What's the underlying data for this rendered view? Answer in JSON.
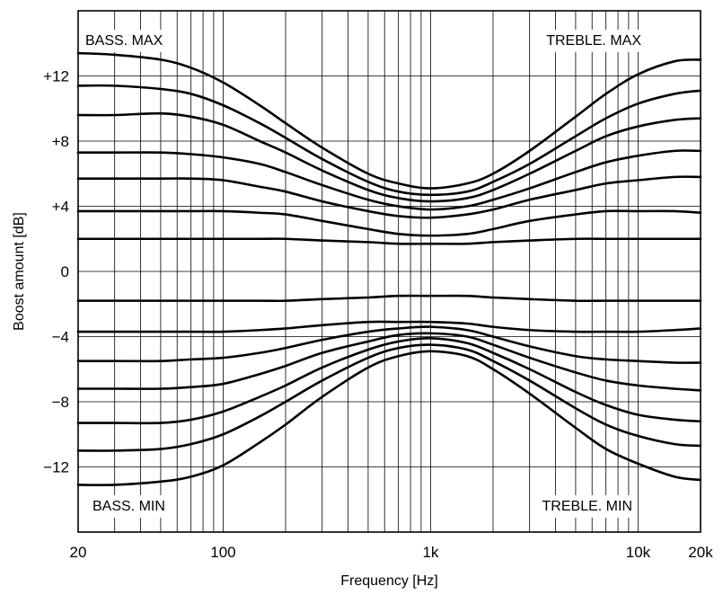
{
  "chart_data": {
    "type": "line",
    "xlabel": "Frequency [Hz]",
    "ylabel": "Boost amount [dB]",
    "x_scale": "log",
    "xlim": [
      20,
      20000
    ],
    "ylim": [
      -16,
      16
    ],
    "grid": true,
    "x_ticks": [
      {
        "value": 20,
        "label": "20"
      },
      {
        "value": 100,
        "label": "100"
      },
      {
        "value": 1000,
        "label": "1k"
      },
      {
        "value": 10000,
        "label": "10k"
      },
      {
        "value": 20000,
        "label": "20k"
      }
    ],
    "y_ticks": [
      {
        "value": 12,
        "label": "+12"
      },
      {
        "value": 8,
        "label": "+8"
      },
      {
        "value": 4,
        "label": "+4"
      },
      {
        "value": 0,
        "label": "0"
      },
      {
        "value": -4,
        "label": "−4"
      },
      {
        "value": -8,
        "label": "−8"
      },
      {
        "value": -12,
        "label": "−12"
      }
    ],
    "annotations": [
      {
        "text": "BASS. MAX",
        "position": "top-left"
      },
      {
        "text": "TREBLE. MAX",
        "position": "top-right"
      },
      {
        "text": "BASS. MIN",
        "position": "bottom-left"
      },
      {
        "text": "TREBLE. MIN",
        "position": "bottom-right"
      }
    ],
    "x": [
      20,
      30,
      50,
      70,
      100,
      150,
      200,
      300,
      500,
      700,
      1000,
      1500,
      2000,
      3000,
      5000,
      7000,
      10000,
      15000,
      20000
    ],
    "series": [
      {
        "values": [
          13.4,
          13.3,
          13.0,
          12.5,
          11.6,
          10.2,
          9.1,
          7.6,
          6.0,
          5.4,
          5.1,
          5.4,
          6.0,
          7.4,
          9.5,
          10.9,
          12.1,
          12.9,
          13.0
        ]
      },
      {
        "values": [
          11.4,
          11.4,
          11.2,
          10.9,
          10.2,
          9.1,
          8.2,
          6.9,
          5.5,
          4.9,
          4.7,
          4.9,
          5.5,
          6.6,
          8.3,
          9.4,
          10.3,
          10.9,
          11.1
        ]
      },
      {
        "values": [
          9.6,
          9.6,
          9.7,
          9.5,
          9.0,
          8.0,
          7.3,
          6.2,
          5.0,
          4.5,
          4.3,
          4.5,
          5.0,
          6.0,
          7.4,
          8.3,
          8.9,
          9.3,
          9.4
        ]
      },
      {
        "values": [
          7.3,
          7.3,
          7.3,
          7.2,
          7.0,
          6.6,
          6.1,
          5.3,
          4.4,
          4.0,
          3.8,
          4.0,
          4.4,
          5.1,
          6.1,
          6.7,
          7.1,
          7.4,
          7.4
        ]
      },
      {
        "values": [
          5.7,
          5.7,
          5.7,
          5.7,
          5.6,
          5.2,
          4.9,
          4.3,
          3.7,
          3.4,
          3.3,
          3.5,
          3.8,
          4.4,
          5.0,
          5.4,
          5.6,
          5.8,
          5.8
        ]
      },
      {
        "values": [
          3.7,
          3.7,
          3.7,
          3.7,
          3.7,
          3.6,
          3.5,
          3.1,
          2.6,
          2.3,
          2.2,
          2.3,
          2.6,
          3.1,
          3.5,
          3.7,
          3.7,
          3.7,
          3.6
        ]
      },
      {
        "values": [
          2.0,
          2.0,
          2.0,
          2.0,
          2.0,
          2.0,
          2.0,
          1.9,
          1.8,
          1.7,
          1.7,
          1.7,
          1.8,
          1.9,
          2.0,
          2.0,
          2.0,
          2.0,
          2.0
        ]
      },
      {
        "values": [
          -1.8,
          -1.8,
          -1.8,
          -1.8,
          -1.8,
          -1.8,
          -1.8,
          -1.7,
          -1.6,
          -1.5,
          -1.5,
          -1.5,
          -1.6,
          -1.7,
          -1.8,
          -1.8,
          -1.8,
          -1.8,
          -1.8
        ]
      },
      {
        "values": [
          -3.7,
          -3.7,
          -3.7,
          -3.7,
          -3.7,
          -3.6,
          -3.5,
          -3.3,
          -3.1,
          -3.1,
          -3.1,
          -3.2,
          -3.4,
          -3.6,
          -3.7,
          -3.7,
          -3.7,
          -3.6,
          -3.5
        ]
      },
      {
        "values": [
          -5.5,
          -5.5,
          -5.5,
          -5.4,
          -5.3,
          -5.0,
          -4.7,
          -4.2,
          -3.7,
          -3.5,
          -3.4,
          -3.6,
          -4.0,
          -4.6,
          -5.2,
          -5.4,
          -5.5,
          -5.6,
          -5.6
        ]
      },
      {
        "values": [
          -7.2,
          -7.2,
          -7.2,
          -7.1,
          -6.9,
          -6.3,
          -5.8,
          -5.0,
          -4.3,
          -3.9,
          -3.8,
          -4.0,
          -4.5,
          -5.3,
          -6.2,
          -6.7,
          -7.0,
          -7.2,
          -7.3
        ]
      },
      {
        "values": [
          -9.3,
          -9.3,
          -9.3,
          -9.1,
          -8.6,
          -7.7,
          -7.0,
          -5.9,
          -4.8,
          -4.3,
          -4.1,
          -4.4,
          -5.0,
          -6.0,
          -7.4,
          -8.2,
          -8.8,
          -9.1,
          -9.2
        ]
      },
      {
        "values": [
          -11.0,
          -11.0,
          -10.9,
          -10.6,
          -10.0,
          -8.9,
          -8.0,
          -6.7,
          -5.3,
          -4.7,
          -4.5,
          -4.8,
          -5.5,
          -6.7,
          -8.4,
          -9.4,
          -10.1,
          -10.6,
          -10.7
        ]
      },
      {
        "values": [
          -13.1,
          -13.1,
          -12.9,
          -12.6,
          -11.9,
          -10.5,
          -9.4,
          -7.7,
          -5.9,
          -5.2,
          -4.9,
          -5.2,
          -6.0,
          -7.5,
          -9.6,
          -10.9,
          -11.8,
          -12.6,
          -12.8
        ]
      }
    ]
  }
}
